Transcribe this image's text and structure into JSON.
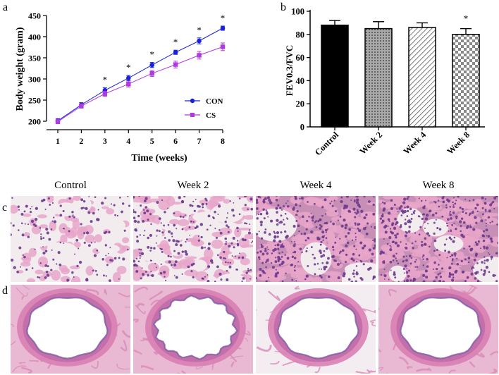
{
  "panels": {
    "a_label": "a",
    "b_label": "b",
    "c_label": "c",
    "d_label": "d"
  },
  "colors": {
    "con": "#1a22d6",
    "cs": "#b03adf",
    "he_pink": "#e7a6c9",
    "he_purple": "#6b3a8c",
    "background_slide": "#f2ecef"
  },
  "histology": {
    "columns": [
      "Control",
      "Week 2",
      "Week 4",
      "Week 8"
    ],
    "rows": [
      "c",
      "d"
    ]
  },
  "chart_data": [
    {
      "type": "line",
      "xlabel": "Time (weeks)",
      "ylabel": "Body weight (gram)",
      "x": [
        1,
        2,
        3,
        4,
        5,
        6,
        7,
        8
      ],
      "xlim": [
        1,
        8
      ],
      "ylim": [
        200,
        450
      ],
      "yticks": [
        200,
        250,
        300,
        350,
        400,
        450
      ],
      "series": [
        {
          "name": "CON",
          "values": [
            201,
            239,
            273,
            302,
            333,
            363,
            390,
            420
          ],
          "errors": [
            5,
            5,
            6,
            6,
            6,
            5,
            7,
            5
          ],
          "marker": "circle"
        },
        {
          "name": "CS",
          "values": [
            199,
            236,
            265,
            288,
            313,
            334,
            356,
            376
          ],
          "errors": [
            5,
            5,
            6,
            7,
            7,
            8,
            9,
            9
          ],
          "marker": "square"
        }
      ],
      "annotations": [
        "*",
        "*",
        "*",
        "*",
        "*",
        "*"
      ],
      "significant_x": [
        3,
        4,
        5,
        6,
        7,
        8
      ],
      "legend": "right-middle"
    },
    {
      "type": "bar",
      "ylabel": "FEV0.3/FVC",
      "categories": [
        "Control",
        "Week 2",
        "Week 4",
        "Week 8"
      ],
      "values": [
        88,
        85,
        86,
        80
      ],
      "errors": [
        4,
        6,
        4,
        5
      ],
      "ylim": [
        0,
        100
      ],
      "yticks": [
        0,
        20,
        40,
        60,
        80,
        100
      ],
      "annotations": [
        "*"
      ],
      "significant_category": "Week 8"
    }
  ]
}
